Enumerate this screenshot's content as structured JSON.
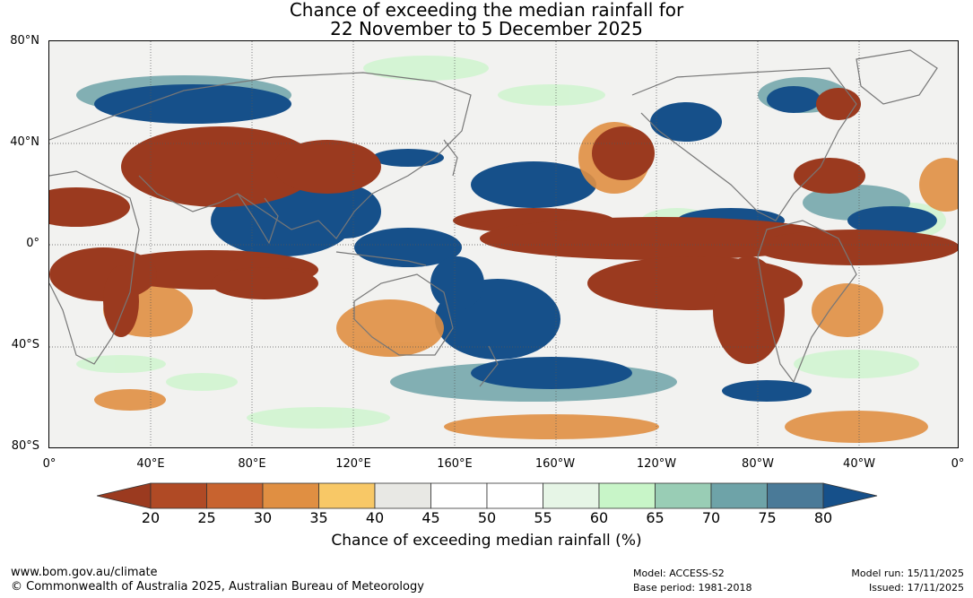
{
  "title": {
    "line1": "Chance of exceeding the median rainfall for",
    "line2": "22 November to 5 December 2025"
  },
  "map": {
    "lat_labels": [
      "80°N",
      "40°N",
      "0°",
      "40°S",
      "80°S"
    ],
    "lon_labels": [
      "0°",
      "40°E",
      "80°E",
      "120°E",
      "160°E",
      "160°W",
      "120°W",
      "80°W",
      "40°W",
      "0°"
    ]
  },
  "colorbar": {
    "label": "Chance of exceeding median rainfall (%)",
    "ticks": [
      "20",
      "25",
      "30",
      "35",
      "40",
      "45",
      "50",
      "55",
      "60",
      "65",
      "70",
      "75",
      "80"
    ],
    "colors": [
      "#9b3a1f",
      "#b04a25",
      "#c8632f",
      "#e08f42",
      "#f8c866",
      "#e8e8e4",
      "#ffffff",
      "#ffffff",
      "#e6f5e6",
      "#c8f5c8",
      "#99cdb5",
      "#6ea3a8",
      "#4a7a98",
      "#16508a"
    ]
  },
  "footer": {
    "website": "www.bom.gov.au/climate",
    "copyright": "© Commonwealth of Australia 2025, Australian Bureau of Meteorology",
    "model": "Model: ACCESS-S2",
    "base_period": "Base period: 1981-2018",
    "model_run": "Model run: 15/11/2025",
    "issued": "Issued: 17/11/2025"
  }
}
